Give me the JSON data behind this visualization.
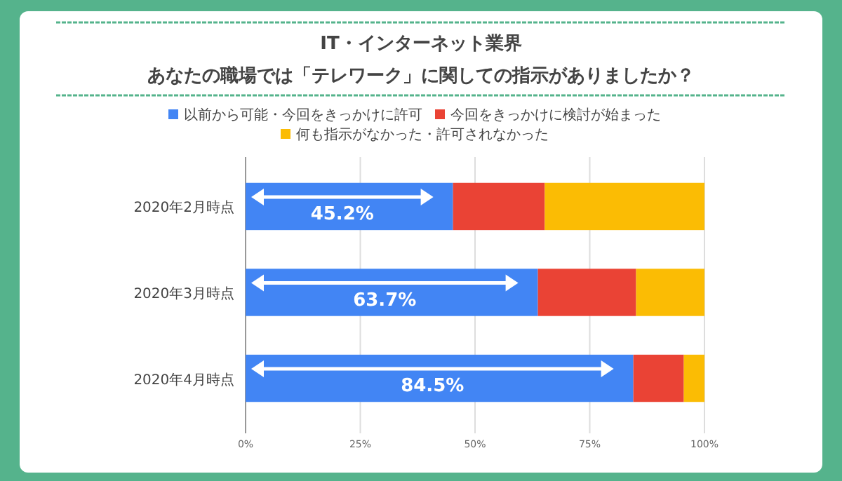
{
  "chart_data": {
    "type": "bar",
    "orientation": "horizontal",
    "stacked": true,
    "title": "IT・インターネット業界",
    "subtitle": "あなたの職場では「テレワーク」に関しての指示がありましたか？",
    "categories": [
      "2020年2月時点",
      "2020年3月時点",
      "2020年4月時点"
    ],
    "series": [
      {
        "name": "以前から可能・今回をきっかけに許可",
        "color": "#4285f4",
        "values": [
          45.2,
          63.7,
          84.5
        ],
        "value_labels": [
          "45.2%",
          "63.7%",
          "84.5%"
        ]
      },
      {
        "name": "今回をきっかけに検討が始まった",
        "color": "#ea4335",
        "values": [
          20.0,
          21.4,
          11.0
        ]
      },
      {
        "name": "何も指示がなかった・許可されなかった",
        "color": "#fbbc04",
        "values": [
          34.8,
          14.9,
          4.5
        ]
      }
    ],
    "xlim": [
      0,
      100
    ],
    "xticks": [
      {
        "value": 0,
        "label": "0%"
      },
      {
        "value": 25,
        "label": "25%"
      },
      {
        "value": 50,
        "label": "50%"
      },
      {
        "value": 75,
        "label": "75%"
      },
      {
        "value": 100,
        "label": "100%"
      }
    ],
    "grid": "x",
    "legend": "top"
  }
}
